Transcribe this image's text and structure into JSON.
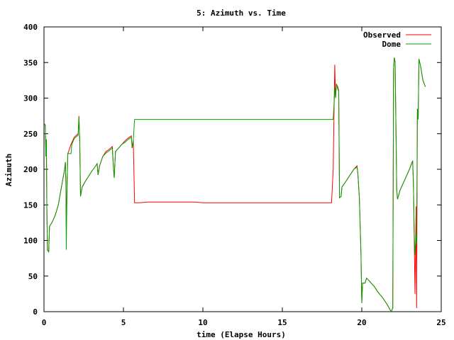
{
  "chart_data": {
    "type": "line",
    "title": "5: Azimuth vs. Time",
    "xlabel": "time (Elapse Hours)",
    "ylabel": "Azimuth",
    "xlim": [
      0,
      25
    ],
    "ylim": [
      0,
      400
    ],
    "xticks": [
      "0",
      "5",
      "10",
      "15",
      "20",
      "25"
    ],
    "yticks": [
      "0",
      "50",
      "100",
      "150",
      "200",
      "250",
      "300",
      "350",
      "400"
    ],
    "grid": false,
    "legend_position": "top-right",
    "series": [
      {
        "name": "Observed",
        "color": "#ff0000",
        "points": [
          [
            0,
            265
          ],
          [
            0.08,
            262
          ],
          [
            0.12,
            218
          ],
          [
            0.15,
            242
          ],
          [
            0.18,
            150
          ],
          [
            0.22,
            86
          ],
          [
            0.3,
            85
          ],
          [
            0.35,
            120
          ],
          [
            0.5,
            125
          ],
          [
            0.7,
            135
          ],
          [
            0.9,
            150
          ],
          [
            1.1,
            175
          ],
          [
            1.3,
            200
          ],
          [
            1.35,
            210
          ],
          [
            1.38,
            180
          ],
          [
            1.4,
            118
          ],
          [
            1.45,
            175
          ],
          [
            1.5,
            222
          ],
          [
            1.55,
            225
          ],
          [
            1.7,
            235
          ],
          [
            1.9,
            245
          ],
          [
            2.0,
            247
          ],
          [
            2.15,
            250
          ],
          [
            2.2,
            275
          ],
          [
            2.25,
            240
          ],
          [
            2.3,
            162
          ],
          [
            2.4,
            175
          ],
          [
            2.6,
            183
          ],
          [
            2.8,
            190
          ],
          [
            3.0,
            197
          ],
          [
            3.2,
            203
          ],
          [
            3.35,
            208
          ],
          [
            3.4,
            192
          ],
          [
            3.5,
            205
          ],
          [
            3.7,
            218
          ],
          [
            3.9,
            225
          ],
          [
            4.1,
            228
          ],
          [
            4.3,
            232
          ],
          [
            4.38,
            200
          ],
          [
            4.42,
            188
          ],
          [
            4.5,
            225
          ],
          [
            4.7,
            230
          ],
          [
            4.9,
            235
          ],
          [
            5.1,
            240
          ],
          [
            5.3,
            244
          ],
          [
            5.5,
            247
          ],
          [
            5.55,
            230
          ],
          [
            5.62,
            240
          ],
          [
            5.7,
            153
          ],
          [
            6.0,
            153
          ],
          [
            6.5,
            154
          ],
          [
            8.0,
            154
          ],
          [
            9.5,
            154
          ],
          [
            10.0,
            153
          ],
          [
            12.0,
            153
          ],
          [
            14.0,
            153
          ],
          [
            16.0,
            153
          ],
          [
            17.5,
            153
          ],
          [
            18.0,
            153
          ],
          [
            18.1,
            153
          ],
          [
            18.2,
            200
          ],
          [
            18.25,
            275
          ],
          [
            18.3,
            347
          ],
          [
            18.35,
            300
          ],
          [
            18.4,
            320
          ],
          [
            18.5,
            315
          ],
          [
            18.55,
            310
          ],
          [
            18.6,
            160
          ],
          [
            18.7,
            162
          ],
          [
            18.75,
            175
          ],
          [
            19.0,
            183
          ],
          [
            19.2,
            190
          ],
          [
            19.5,
            200
          ],
          [
            19.7,
            205
          ],
          [
            19.75,
            195
          ],
          [
            19.85,
            160
          ],
          [
            19.95,
            80
          ],
          [
            20.0,
            12
          ],
          [
            20.05,
            40
          ],
          [
            20.2,
            40
          ],
          [
            20.3,
            47
          ],
          [
            20.4,
            45
          ],
          [
            20.6,
            40
          ],
          [
            20.8,
            35
          ],
          [
            21.0,
            28
          ],
          [
            21.3,
            20
          ],
          [
            21.6,
            10
          ],
          [
            21.85,
            0
          ],
          [
            21.95,
            5
          ],
          [
            22.0,
            340
          ],
          [
            22.05,
            357
          ],
          [
            22.1,
            350
          ],
          [
            22.2,
            170
          ],
          [
            22.25,
            158
          ],
          [
            22.4,
            170
          ],
          [
            22.6,
            180
          ],
          [
            22.8,
            190
          ],
          [
            23.0,
            200
          ],
          [
            23.2,
            212
          ],
          [
            23.25,
            180
          ],
          [
            23.3,
            105
          ],
          [
            23.35,
            25
          ],
          [
            23.42,
            148
          ],
          [
            23.45,
            5
          ],
          [
            23.5,
            285
          ],
          [
            23.55,
            270
          ],
          [
            23.6,
            355
          ],
          [
            23.7,
            345
          ],
          [
            23.85,
            325
          ],
          [
            24.0,
            316
          ]
        ]
      },
      {
        "name": "Dome",
        "color": "#00a000",
        "points": [
          [
            0,
            265
          ],
          [
            0.08,
            262
          ],
          [
            0.12,
            218
          ],
          [
            0.15,
            242
          ],
          [
            0.18,
            150
          ],
          [
            0.22,
            87
          ],
          [
            0.3,
            84
          ],
          [
            0.35,
            120
          ],
          [
            0.5,
            125
          ],
          [
            0.7,
            135
          ],
          [
            0.9,
            150
          ],
          [
            1.1,
            175
          ],
          [
            1.3,
            200
          ],
          [
            1.35,
            210
          ],
          [
            1.38,
            180
          ],
          [
            1.4,
            87
          ],
          [
            1.45,
            175
          ],
          [
            1.5,
            222
          ],
          [
            1.55,
            222
          ],
          [
            1.7,
            222
          ],
          [
            1.75,
            235
          ],
          [
            1.9,
            243
          ],
          [
            2.0,
            245
          ],
          [
            2.15,
            248
          ],
          [
            2.2,
            273
          ],
          [
            2.25,
            240
          ],
          [
            2.3,
            162
          ],
          [
            2.4,
            175
          ],
          [
            2.6,
            183
          ],
          [
            2.8,
            190
          ],
          [
            3.0,
            197
          ],
          [
            3.2,
            203
          ],
          [
            3.35,
            208
          ],
          [
            3.4,
            192
          ],
          [
            3.5,
            205
          ],
          [
            3.7,
            218
          ],
          [
            3.9,
            223
          ],
          [
            4.1,
            226
          ],
          [
            4.3,
            230
          ],
          [
            4.38,
            200
          ],
          [
            4.42,
            188
          ],
          [
            4.5,
            225
          ],
          [
            4.7,
            230
          ],
          [
            4.9,
            235
          ],
          [
            5.1,
            238
          ],
          [
            5.3,
            242
          ],
          [
            5.5,
            245
          ],
          [
            5.55,
            230
          ],
          [
            5.62,
            240
          ],
          [
            5.7,
            270
          ],
          [
            6.0,
            270
          ],
          [
            8.0,
            270
          ],
          [
            10.0,
            270
          ],
          [
            12.0,
            270
          ],
          [
            14.0,
            270
          ],
          [
            16.0,
            270
          ],
          [
            18.0,
            270
          ],
          [
            18.2,
            270
          ],
          [
            18.25,
            290
          ],
          [
            18.3,
            315
          ],
          [
            18.35,
            300
          ],
          [
            18.4,
            320
          ],
          [
            18.5,
            312
          ],
          [
            18.55,
            310
          ],
          [
            18.6,
            160
          ],
          [
            18.7,
            162
          ],
          [
            18.75,
            175
          ],
          [
            19.0,
            183
          ],
          [
            19.2,
            190
          ],
          [
            19.5,
            200
          ],
          [
            19.7,
            203
          ],
          [
            19.75,
            195
          ],
          [
            19.85,
            160
          ],
          [
            19.95,
            80
          ],
          [
            20.0,
            12
          ],
          [
            20.05,
            40
          ],
          [
            20.2,
            40
          ],
          [
            20.3,
            47
          ],
          [
            20.4,
            45
          ],
          [
            20.6,
            40
          ],
          [
            20.8,
            35
          ],
          [
            21.0,
            28
          ],
          [
            21.3,
            20
          ],
          [
            21.6,
            10
          ],
          [
            21.85,
            0
          ],
          [
            21.95,
            5
          ],
          [
            22.0,
            340
          ],
          [
            22.05,
            357
          ],
          [
            22.1,
            350
          ],
          [
            22.2,
            170
          ],
          [
            22.25,
            158
          ],
          [
            22.4,
            170
          ],
          [
            22.6,
            180
          ],
          [
            22.8,
            190
          ],
          [
            23.0,
            200
          ],
          [
            23.2,
            212
          ],
          [
            23.25,
            180
          ],
          [
            23.3,
            112
          ],
          [
            23.35,
            80
          ],
          [
            23.42,
            108
          ],
          [
            23.45,
            95
          ],
          [
            23.5,
            285
          ],
          [
            23.55,
            270
          ],
          [
            23.6,
            355
          ],
          [
            23.7,
            345
          ],
          [
            23.85,
            325
          ],
          [
            24.0,
            316
          ]
        ]
      }
    ]
  }
}
